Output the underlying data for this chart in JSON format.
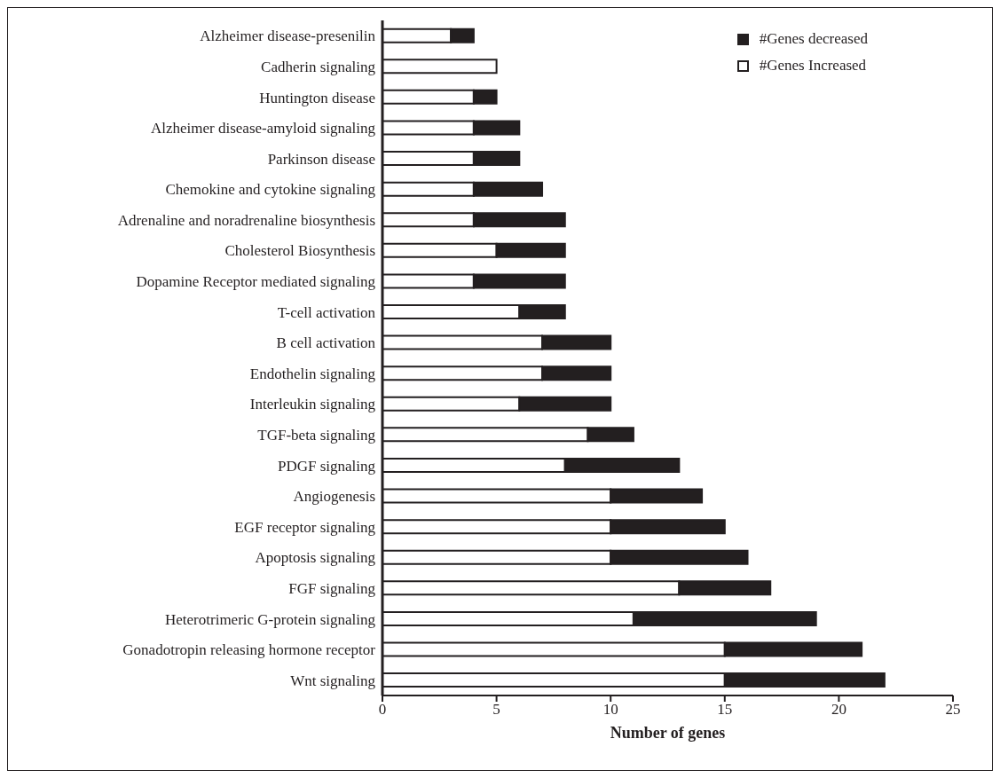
{
  "chart_data": {
    "type": "bar",
    "orientation": "horizontal",
    "stacked": true,
    "xlabel": "Number of genes",
    "categories": [
      "Alzheimer disease-presenilin",
      "Cadherin signaling",
      "Huntington disease",
      "Alzheimer disease-amyloid signaling",
      "Parkinson disease",
      "Chemokine and cytokine signaling",
      "Adrenaline and noradrenaline biosynthesis",
      "Cholesterol Biosynthesis",
      "Dopamine Receptor mediated signaling",
      "T-cell activation",
      "B cell activation",
      "Endothelin signaling",
      "Interleukin signaling",
      "TGF-beta signaling",
      "PDGF signaling",
      "Angiogenesis",
      "EGF receptor signaling",
      "Apoptosis signaling",
      "FGF signaling",
      "Heterotrimeric G-protein signaling",
      "Gonadotropin releasing hormone receptor",
      "Wnt signaling"
    ],
    "series": [
      {
        "name": "#Genes Increased",
        "color": "#ffffff",
        "values": [
          3,
          5,
          4,
          4,
          4,
          4,
          4,
          5,
          4,
          6,
          7,
          7,
          6,
          9,
          8,
          10,
          10,
          10,
          13,
          11,
          15,
          15
        ]
      },
      {
        "name": "#Genes decreased",
        "color": "#231f20",
        "values": [
          1,
          0,
          1,
          2,
          2,
          3,
          4,
          3,
          4,
          2,
          3,
          3,
          4,
          2,
          5,
          4,
          5,
          6,
          4,
          8,
          6,
          7
        ]
      }
    ],
    "xlim": [
      0,
      25
    ],
    "xticks": [
      0,
      5,
      10,
      15,
      20,
      25
    ],
    "grid": false,
    "legend": "top right"
  }
}
